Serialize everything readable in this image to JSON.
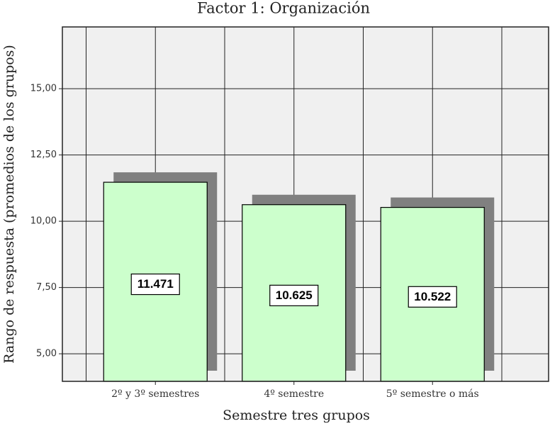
{
  "chart_data": {
    "type": "bar",
    "title": "Factor 1: Organización",
    "x_label": "Semestre tres grupos",
    "y_label": "Rango de respuesta (promedios de los grupos)",
    "categories": [
      "2º y 3º semestres",
      "4º semestre",
      "5º semestre o más"
    ],
    "values": [
      11.471,
      10.625,
      10.522
    ],
    "color": "#ccffcc",
    "shadow_color": "#808080",
    "ylim": [
      3.96,
      17.33
    ],
    "yticks": [
      {
        "value": 5,
        "label": "5,00"
      },
      {
        "value": 7.5,
        "label": "7,50"
      },
      {
        "value": 10,
        "label": "10,00"
      },
      {
        "value": 12.5,
        "label": "12,50"
      },
      {
        "value": 15,
        "label": "15,00"
      }
    ],
    "grid": true
  }
}
